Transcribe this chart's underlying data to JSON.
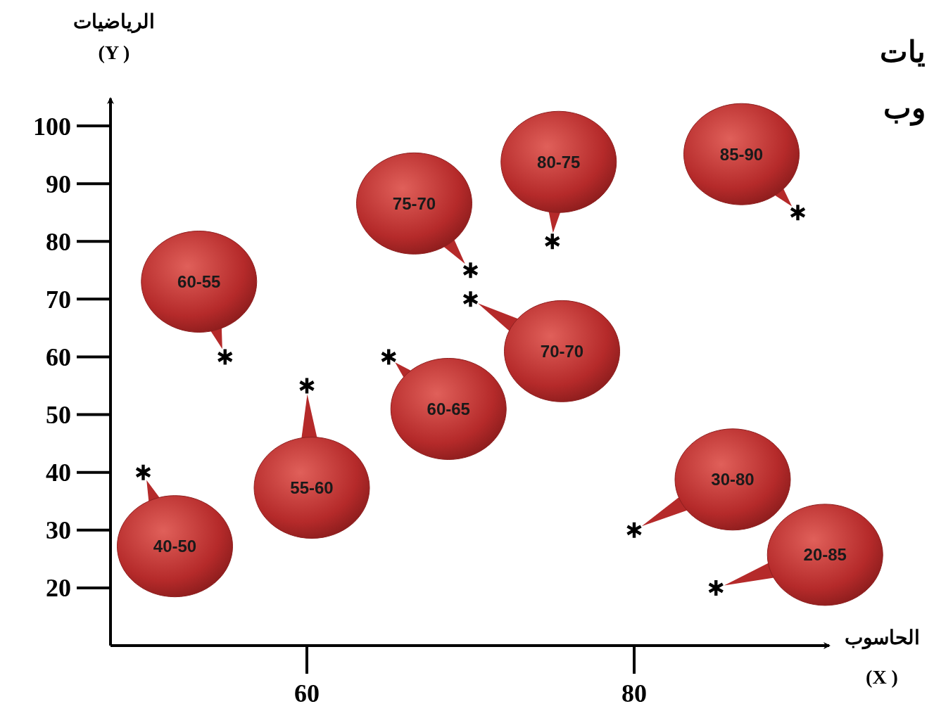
{
  "chart_data": {
    "type": "scatter",
    "title": "يات\nوب",
    "xlabel": "الحاسوب\n(X )",
    "ylabel": "الرياضيات\n(Y )",
    "x": [
      50,
      60,
      55,
      65,
      70,
      70,
      75,
      90,
      80,
      85
    ],
    "values": [
      40,
      55,
      60,
      60,
      75,
      70,
      80,
      85,
      30,
      20
    ],
    "color": "#000000",
    "marker": "cross",
    "xlim": [
      48,
      92
    ],
    "ylim": [
      10,
      105
    ],
    "xticks": [
      60,
      80
    ],
    "yticks": [
      20,
      30,
      40,
      50,
      60,
      70,
      80,
      90,
      100
    ],
    "grid": false,
    "annotations": [
      "40-50",
      "55-60",
      "60-55",
      "60-65",
      "75-70",
      "70-70",
      "80-75",
      "85-90",
      "30-80",
      "20-85"
    ]
  }
}
